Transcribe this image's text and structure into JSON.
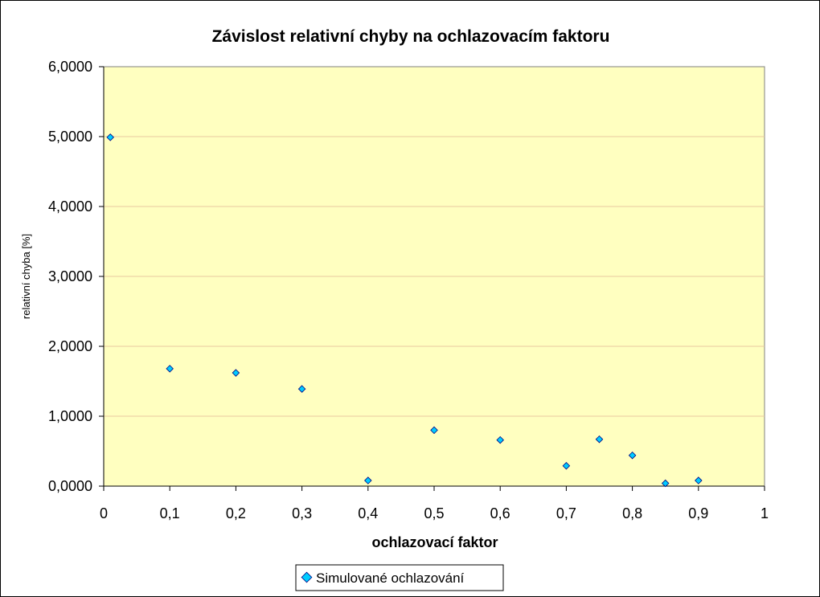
{
  "chart_data": {
    "type": "scatter",
    "title": "Závislost relativní chyby na ochlazovacím faktoru",
    "xlabel": "ochlazovací faktor",
    "ylabel": "relativní chyba [%]",
    "xlim": [
      0,
      1
    ],
    "ylim": [
      0,
      6
    ],
    "x_ticks": [
      0,
      0.1,
      0.2,
      0.3,
      0.4,
      0.5,
      0.6,
      0.7,
      0.8,
      0.9,
      1
    ],
    "x_tick_labels": [
      "0",
      "0,1",
      "0,2",
      "0,3",
      "0,4",
      "0,5",
      "0,6",
      "0,7",
      "0,8",
      "0,9",
      "1"
    ],
    "y_ticks": [
      0,
      1,
      2,
      3,
      4,
      5,
      6
    ],
    "y_tick_labels": [
      "0,0000",
      "1,0000",
      "2,0000",
      "3,0000",
      "4,0000",
      "5,0000",
      "6,0000"
    ],
    "grid": "horizontal",
    "legend_position": "bottom",
    "plot_background": "#ffffc0",
    "gridline_color": "#e8c8a0",
    "marker_color": "#00ccff",
    "series": [
      {
        "name": "Simulované ochlazování",
        "points": [
          {
            "x": 0.01,
            "y": 4.99
          },
          {
            "x": 0.1,
            "y": 1.68
          },
          {
            "x": 0.2,
            "y": 1.62
          },
          {
            "x": 0.3,
            "y": 1.39
          },
          {
            "x": 0.4,
            "y": 0.08
          },
          {
            "x": 0.5,
            "y": 0.8
          },
          {
            "x": 0.6,
            "y": 0.66
          },
          {
            "x": 0.7,
            "y": 0.29
          },
          {
            "x": 0.75,
            "y": 0.67
          },
          {
            "x": 0.8,
            "y": 0.44
          },
          {
            "x": 0.85,
            "y": 0.04
          },
          {
            "x": 0.9,
            "y": 0.08
          }
        ]
      }
    ]
  }
}
